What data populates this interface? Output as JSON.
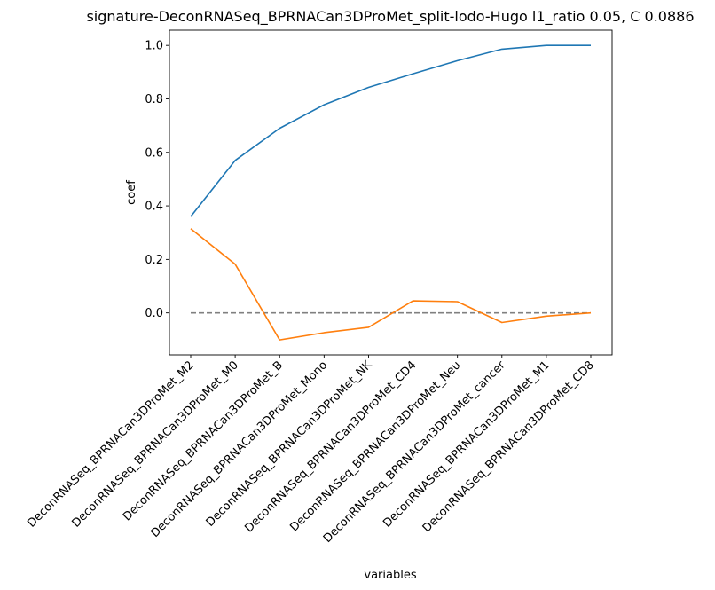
{
  "chart_data": {
    "type": "line",
    "title": "signature-DeconRNASeq_BPRNACan3DProMet_split-lodo-Hugo l1_ratio 0.05, C 0.0886",
    "xlabel": "variables",
    "ylabel": "coef",
    "categories": [
      "DeconRNASeq_BPRNACan3DProMet_M2",
      "DeconRNASeq_BPRNACan3DProMet_M0",
      "DeconRNASeq_BPRNACan3DProMet_B",
      "DeconRNASeq_BPRNACan3DProMet_Mono",
      "DeconRNASeq_BPRNACan3DProMet_NK",
      "DeconRNASeq_BPRNACan3DProMet_CD4",
      "DeconRNASeq_BPRNACan3DProMet_Neu",
      "DeconRNASeq_BPRNACan3DProMet_cancer",
      "DeconRNASeq_BPRNACan3DProMet_M1",
      "DeconRNASeq_BPRNACan3DProMet_CD8"
    ],
    "series": [
      {
        "values": [
          0.36,
          0.57,
          0.69,
          0.778,
          0.843,
          0.894,
          0.943,
          0.986,
          1.0,
          1.0
        ],
        "color": "#1f77b4"
      },
      {
        "values": [
          0.315,
          0.182,
          -0.101,
          -0.074,
          -0.054,
          0.045,
          0.042,
          -0.036,
          -0.012,
          0.0
        ],
        "color": "#ff7f0e"
      }
    ],
    "reference_line": {
      "y": 0,
      "style": "dashed",
      "color": "#808080"
    },
    "yticks": [
      0.0,
      0.2,
      0.4,
      0.6,
      0.8,
      1.0
    ],
    "ytick_labels": [
      "0.0",
      "0.2",
      "0.4",
      "0.6",
      "0.8",
      "1.0"
    ],
    "ylim": [
      -0.157,
      1.057
    ],
    "grid": false,
    "legend": "none"
  }
}
